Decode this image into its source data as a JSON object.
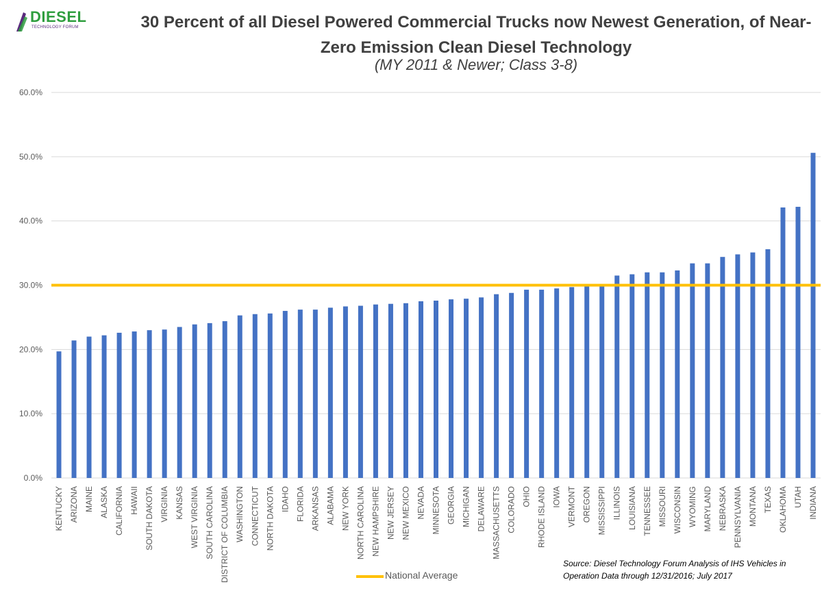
{
  "logo": {
    "brand": "DIESEL",
    "tagline": "TECHNOLOGY FORUM"
  },
  "header": {
    "title": "30 Percent of all Diesel Powered Commercial Trucks now Newest Generation, of Near-Zero Emission Clean Diesel Technology",
    "subtitle": "(MY 2011 & Newer; Class 3-8)"
  },
  "source_note": "Source:  Diesel Technology Forum Analysis of IHS Vehicles in Operation Data through 12/31/2016; July 2017",
  "colors": {
    "bar": "#4472c4",
    "average_line": "#ffc000",
    "grid": "#d9d9d9",
    "text": "#595959"
  },
  "chart_data": {
    "type": "bar",
    "categories": [
      "KENTUCKY",
      "ARIZONA",
      "MAINE",
      "ALASKA",
      "CALIFORNIA",
      "HAWAII",
      "SOUTH DAKOTA",
      "VIRGINIA",
      "KANSAS",
      "WEST VIRGINIA",
      "SOUTH CAROLINA",
      "DISTRICT OF COLUMBIA",
      "WASHINGTON",
      "CONNECTICUT",
      "NORTH DAKOTA",
      "IDAHO",
      "FLORIDA",
      "ARKANSAS",
      "ALABAMA",
      "NEW YORK",
      "NORTH CAROLINA",
      "NEW HAMPSHIRE",
      "NEW JERSEY",
      "NEW MEXICO",
      "NEVADA",
      "MINNESOTA",
      "GEORGIA",
      "MICHIGAN",
      "DELAWARE",
      "MASSACHUSETTS",
      "COLORADO",
      "OHIO",
      "RHODE ISLAND",
      "IOWA",
      "VERMONT",
      "OREGON",
      "MISSISSIPPI",
      "ILLINOIS",
      "LOUISIANA",
      "TENNESSEE",
      "MISSOURI",
      "WISCONSIN",
      "WYOMING",
      "MARYLAND",
      "NEBRASKA",
      "PENNSYLVANIA",
      "MONTANA",
      "TEXAS",
      "OKLAHOMA",
      "UTAH",
      "INDIANA"
    ],
    "values": [
      19.7,
      21.4,
      22.0,
      22.2,
      22.6,
      22.8,
      23.0,
      23.1,
      23.5,
      23.9,
      24.1,
      24.4,
      25.3,
      25.5,
      25.6,
      26.0,
      26.2,
      26.2,
      26.5,
      26.7,
      26.8,
      27.0,
      27.1,
      27.2,
      27.5,
      27.6,
      27.8,
      27.9,
      28.1,
      28.6,
      28.8,
      29.3,
      29.3,
      29.5,
      29.7,
      29.8,
      29.8,
      31.5,
      31.7,
      32.0,
      32.0,
      32.3,
      33.4,
      33.4,
      34.4,
      34.8,
      35.1,
      35.6,
      42.1,
      42.2,
      50.6
    ],
    "reference_line": {
      "name": "National Average",
      "value": 30.0
    },
    "ylim": [
      0,
      60
    ],
    "yticks": [
      0,
      10,
      20,
      30,
      40,
      50,
      60
    ],
    "ytick_labels": [
      "0.0%",
      "10.0%",
      "20.0%",
      "30.0%",
      "40.0%",
      "50.0%",
      "60.0%"
    ],
    "grid": true,
    "legend": "bottom"
  }
}
